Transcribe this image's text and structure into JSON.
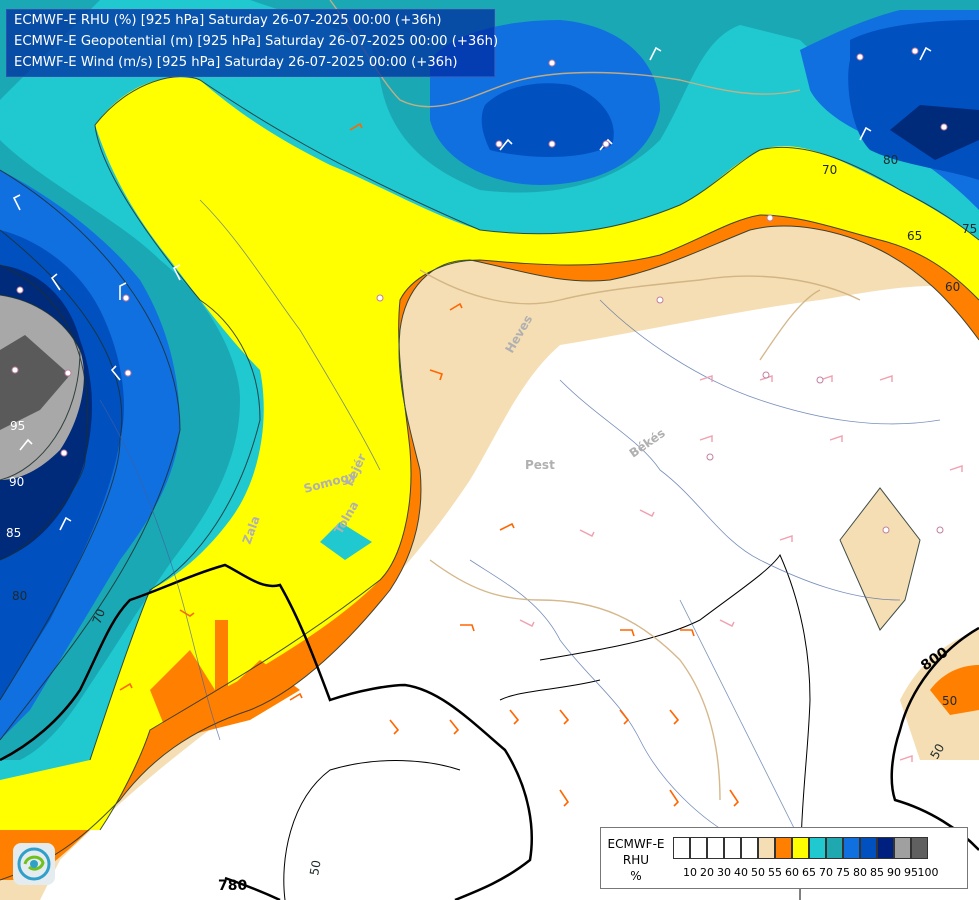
{
  "header": {
    "lines": [
      "ECMWF-E RHU (%) [925 hPa] Saturday 26-07-2025 00:00 (+36h)",
      "ECMWF-E Geopotential (m) [925 hPa] Saturday 26-07-2025 00:00 (+36h)",
      "ECMWF-E Wind (m/s) [925 hPa] Saturday 26-07-2025 00:00 (+36h)"
    ]
  },
  "legend": {
    "title": [
      "ECMWF-E",
      "RHU",
      "%"
    ],
    "ticks": [
      "10",
      "20",
      "30",
      "40",
      "50",
      "55",
      "60",
      "65",
      "70",
      "75",
      "80",
      "85",
      "90",
      "95",
      "100"
    ],
    "colors": [
      "#ffffff",
      "#ffffff",
      "#ffffff",
      "#ffffff",
      "#ffffff",
      "#f5deb3",
      "#ff8000",
      "#ffff00",
      "#20c8d0",
      "#20a8b0",
      "#1070e0",
      "#0050c0",
      "#002080",
      "#a0a0a0",
      "#606060"
    ]
  },
  "map": {
    "region_labels": [
      "Pest",
      "Békés",
      "Heves",
      "Somogy",
      "Fejér",
      "Tolna",
      "Zala"
    ],
    "contour_labels_rhu": [
      "95",
      "90",
      "85",
      "80",
      "70",
      "60",
      "65",
      "70",
      "75",
      "80",
      "50",
      "50",
      "50"
    ],
    "contour_labels_geopotential": [
      "800",
      "780"
    ]
  },
  "logo": {
    "name": "meteo-logo-icon"
  }
}
